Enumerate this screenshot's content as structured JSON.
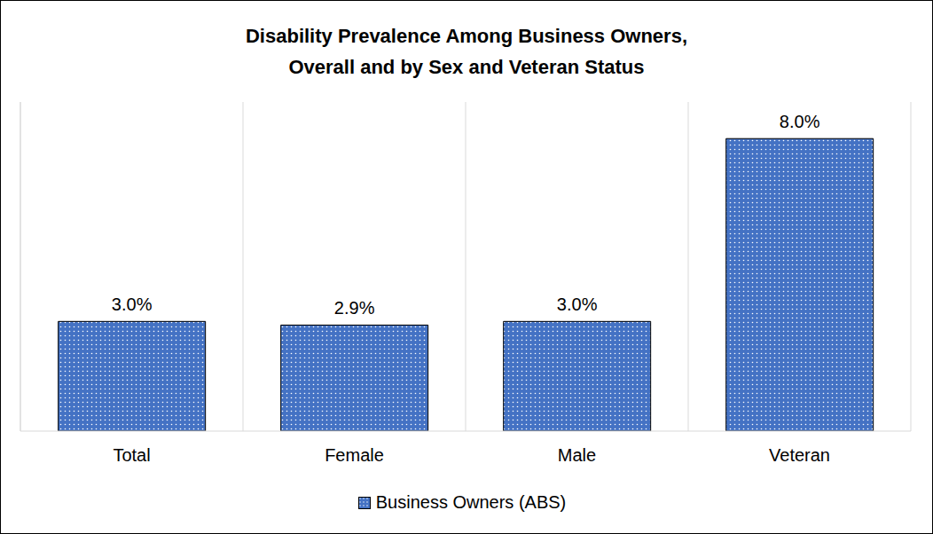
{
  "chart_data": {
    "type": "bar",
    "title": "Disability Prevalence Among Business Owners,\nOverall and by Sex and Veteran Status",
    "categories": [
      "Total",
      "Female",
      "Male",
      "Veteran"
    ],
    "series": [
      {
        "name": "Business Owners (ABS)",
        "color": "#4472c4",
        "values": [
          3.0,
          2.9,
          3.0,
          8.0
        ],
        "value_labels": [
          "3.0%",
          "2.9%",
          "3.0%",
          "8.0%"
        ]
      }
    ],
    "ylim": [
      0,
      9
    ],
    "grid": true,
    "data_labels": true,
    "tick_labels": "x",
    "legend": "bottom"
  }
}
